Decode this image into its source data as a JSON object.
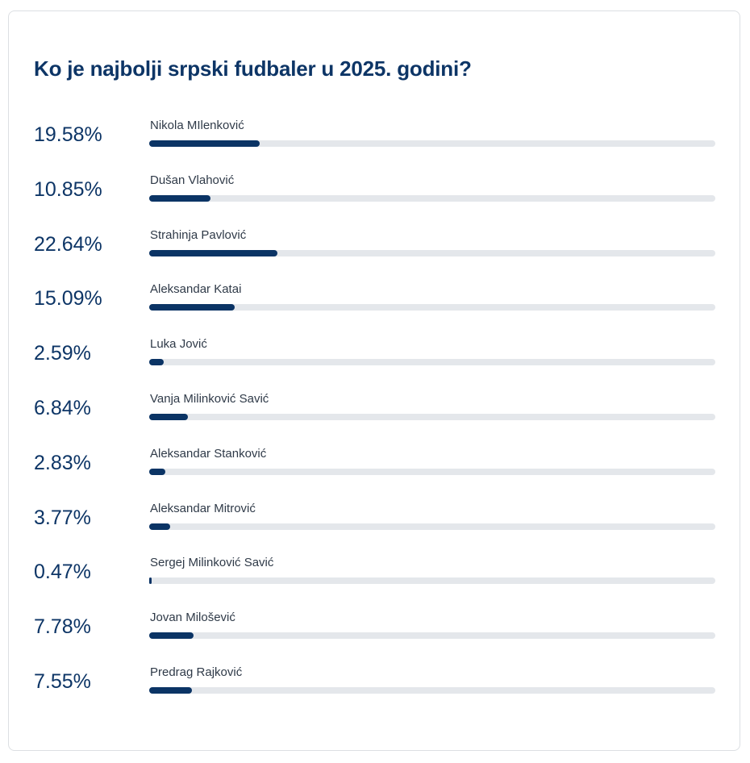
{
  "poll": {
    "title": "Ko je najbolji srpski fudbaler u 2025. godini?",
    "options": [
      {
        "label": "Nikola MIlenković",
        "percent_text": "19.58%",
        "percent": 19.58
      },
      {
        "label": "Dušan Vlahović",
        "percent_text": "10.85%",
        "percent": 10.85
      },
      {
        "label": "Strahinja Pavlović",
        "percent_text": "22.64%",
        "percent": 22.64
      },
      {
        "label": "Aleksandar Katai",
        "percent_text": "15.09%",
        "percent": 15.09
      },
      {
        "label": "Luka Jović",
        "percent_text": "2.59%",
        "percent": 2.59
      },
      {
        "label": "Vanja Milinković Savić",
        "percent_text": "6.84%",
        "percent": 6.84
      },
      {
        "label": "Aleksandar Stanković",
        "percent_text": "2.83%",
        "percent": 2.83
      },
      {
        "label": "Aleksandar Mitrović",
        "percent_text": "3.77%",
        "percent": 3.77
      },
      {
        "label": "Sergej Milinković Savić",
        "percent_text": "0.47%",
        "percent": 0.47
      },
      {
        "label": "Jovan Milošević",
        "percent_text": "7.78%",
        "percent": 7.78
      },
      {
        "label": "Predrag Rajković",
        "percent_text": "7.55%",
        "percent": 7.55
      }
    ]
  },
  "colors": {
    "accent": "#0b3465",
    "track": "#e4e7eb",
    "text": "#0d3566"
  }
}
